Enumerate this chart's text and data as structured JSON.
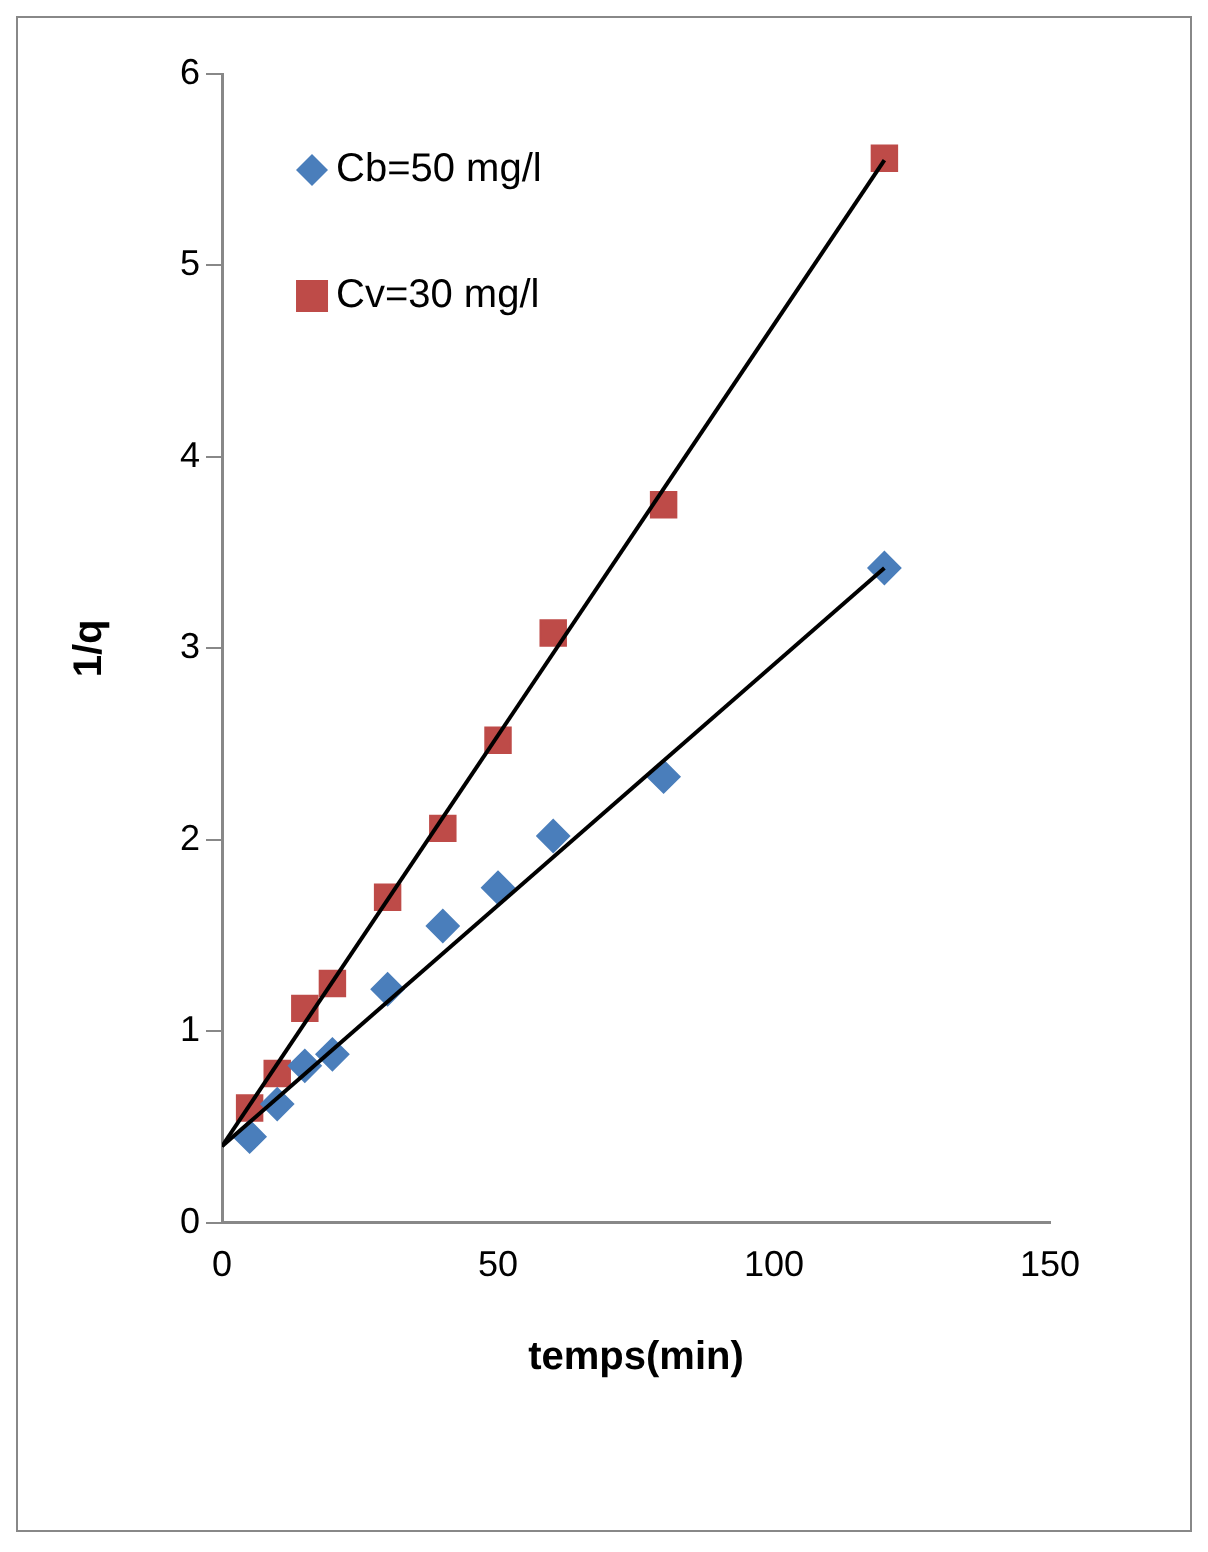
{
  "chart_data": {
    "type": "scatter",
    "xlabel": "temps(min)",
    "ylabel": "1/q",
    "xlim": [
      0,
      150
    ],
    "xticks": [
      0,
      50,
      100,
      150
    ],
    "ylim": [
      0,
      6
    ],
    "yticks": [
      0,
      1,
      2,
      3,
      4,
      5,
      6
    ],
    "grid": false,
    "legend": "top left",
    "series": [
      {
        "name": "Cb=50 mg/l",
        "color": "#4a7ebb",
        "marker": "diamond",
        "x": [
          5,
          10,
          15,
          20,
          30,
          40,
          50,
          60,
          80,
          120
        ],
        "values": [
          0.45,
          0.62,
          0.82,
          0.88,
          1.22,
          1.55,
          1.75,
          2.02,
          2.33,
          3.42
        ]
      },
      {
        "name": "Cv=30 mg/l",
        "color": "#be4b48",
        "marker": "square",
        "x": [
          5,
          10,
          15,
          20,
          30,
          40,
          50,
          60,
          80,
          120
        ],
        "values": [
          0.6,
          0.78,
          1.12,
          1.25,
          1.7,
          2.06,
          2.52,
          3.08,
          3.75,
          5.56
        ]
      },
      {
        "type": "line",
        "color": "#000000",
        "marker": "none",
        "x": [
          0,
          120
        ],
        "values": [
          0.4,
          3.42
        ]
      },
      {
        "type": "line",
        "color": "#000000",
        "marker": "none",
        "x": [
          0,
          120
        ],
        "values": [
          0.4,
          5.55
        ]
      }
    ]
  }
}
